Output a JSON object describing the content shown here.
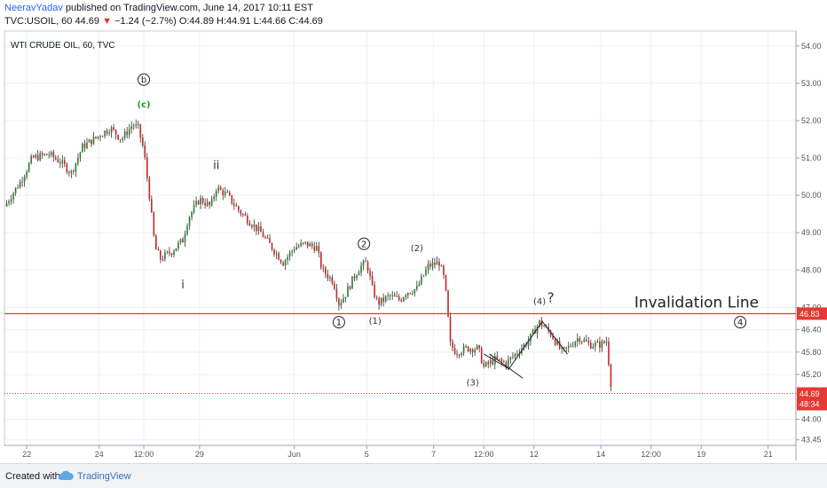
{
  "header": {
    "author": "NeeravYadav",
    "published": "published on TradingView.com, June 14, 2017 10:11 EST",
    "ticker": "TVC:USOIL, 60",
    "last": "44.69",
    "arrow": "▼",
    "change": "−1.24 (−2.7%)",
    "ohlc": "O:44.89 H:44.91 L:44.66 C:44.69"
  },
  "footer": {
    "created_with": "Created with",
    "brand": "TradingView"
  },
  "colors": {
    "up": "#2e7d32",
    "down": "#c62828",
    "invalidation": "#e53935",
    "price_badge": "#e53935",
    "grid": "#eef0f3",
    "axis_text": "#555555",
    "wave_c_green": "#1e9e26"
  },
  "chart_data": {
    "type": "candlestick",
    "title": "WTI CRUDE OIL, 60, TVC",
    "xlabel": "",
    "ylabel": "",
    "ylim": [
      43.3,
      54.4
    ],
    "x_ticks": [
      "22",
      "24",
      "12:00",
      "29",
      "Jun",
      "5",
      "7",
      "12:00",
      "12",
      "14",
      "12:00",
      "19",
      "21"
    ],
    "x_tick_index": [
      4,
      17,
      25,
      35,
      52,
      65,
      77,
      86,
      95,
      107,
      116,
      125,
      137
    ],
    "x_count": 142,
    "y_ticks": [
      "54.00",
      "53.00",
      "52.00",
      "51.00",
      "50.00",
      "49.00",
      "48.00",
      "47.00",
      "46.40",
      "45.80",
      "45.20",
      "44.00",
      "43.45"
    ],
    "y_tick_values": [
      54.0,
      53.0,
      52.0,
      51.0,
      50.0,
      49.0,
      48.0,
      47.0,
      46.4,
      45.8,
      45.2,
      44.0,
      43.45
    ],
    "price_path": [
      [
        0,
        49.7
      ],
      [
        3,
        50.4
      ],
      [
        5,
        51.0
      ],
      [
        8,
        51.1
      ],
      [
        10,
        50.9
      ],
      [
        12,
        50.6
      ],
      [
        14,
        51.3
      ],
      [
        17,
        51.6
      ],
      [
        19,
        51.8
      ],
      [
        21,
        51.5
      ],
      [
        23,
        51.9
      ],
      [
        24,
        51.8
      ],
      [
        25,
        51.2
      ],
      [
        26,
        50.0
      ],
      [
        27,
        48.6
      ],
      [
        28,
        48.3
      ],
      [
        30,
        48.5
      ],
      [
        32,
        48.8
      ],
      [
        33,
        49.4
      ],
      [
        35,
        49.9
      ],
      [
        37,
        49.7
      ],
      [
        38,
        50.2
      ],
      [
        40,
        50.0
      ],
      [
        42,
        49.6
      ],
      [
        44,
        49.3
      ],
      [
        46,
        49.0
      ],
      [
        48,
        48.6
      ],
      [
        50,
        48.2
      ],
      [
        52,
        48.6
      ],
      [
        54,
        48.7
      ],
      [
        56,
        48.6
      ],
      [
        57,
        48.0
      ],
      [
        59,
        47.7
      ],
      [
        60,
        47.1
      ],
      [
        61,
        47.3
      ],
      [
        63,
        47.9
      ],
      [
        64,
        48.1
      ],
      [
        65,
        48.2
      ],
      [
        66,
        47.5
      ],
      [
        67,
        47.1
      ],
      [
        69,
        47.3
      ],
      [
        71,
        47.2
      ],
      [
        72,
        47.4
      ],
      [
        74,
        47.5
      ],
      [
        76,
        48.1
      ],
      [
        78,
        48.2
      ],
      [
        79,
        47.7
      ],
      [
        80,
        46.0
      ],
      [
        81,
        45.8
      ],
      [
        83,
        45.9
      ],
      [
        85,
        45.9
      ],
      [
        86,
        45.4
      ],
      [
        88,
        45.6
      ],
      [
        90,
        45.5
      ],
      [
        92,
        45.8
      ],
      [
        94,
        46.1
      ],
      [
        96,
        46.6
      ],
      [
        98,
        46.3
      ],
      [
        100,
        45.8
      ],
      [
        101,
        45.9
      ],
      [
        103,
        46.2
      ],
      [
        105,
        46.0
      ],
      [
        107,
        46.0
      ],
      [
        108,
        46.1
      ],
      [
        109,
        44.7
      ]
    ],
    "annotations": [
      {
        "label": "b",
        "circled": true,
        "x": 25,
        "y": 53.1
      },
      {
        "label": "(c)",
        "circled": false,
        "x": 25,
        "y": 52.45
      },
      {
        "label": "ii",
        "circled": false,
        "x": 38,
        "y": 50.8
      },
      {
        "label": "i",
        "circled": false,
        "x": 32,
        "y": 47.6
      },
      {
        "label": "2",
        "circled": true,
        "x": 64.5,
        "y": 48.7
      },
      {
        "label": "(2)",
        "circled": false,
        "x": 74,
        "y": 48.6
      },
      {
        "label": "1",
        "circled": true,
        "x": 60,
        "y": 46.6
      },
      {
        "label": "(1)",
        "circled": false,
        "x": 66.5,
        "y": 46.65
      },
      {
        "label": "(4)",
        "circled": false,
        "x": 96,
        "y": 47.18
      },
      {
        "label": "?",
        "circled": false,
        "x": 98,
        "y": 47.23
      },
      {
        "label": "(3)",
        "circled": false,
        "x": 84,
        "y": 45.0
      },
      {
        "label": "4",
        "circled": true,
        "x": 132,
        "y": 46.6
      }
    ],
    "invalidation_line": {
      "label": "Invalidation Line",
      "value": 46.83
    },
    "current_price": {
      "value": 44.69,
      "label": "44.69",
      "countdown": "48:34"
    },
    "invalidation_badge": "46.83"
  }
}
